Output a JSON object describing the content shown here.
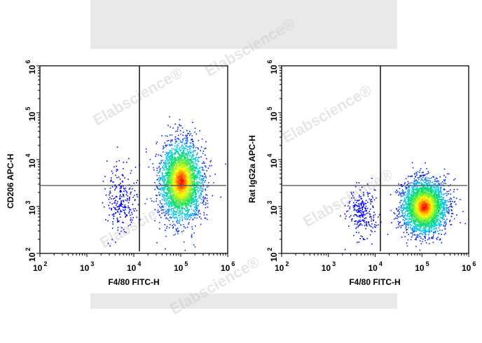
{
  "watermark": "Elabscience®",
  "colors": {
    "background": "#ffffff",
    "gray_band": "#e9e9e9",
    "axis": "#000000",
    "gate_line": "#4a4a4a",
    "density_low": "#0000ff",
    "density_mid_low": "#00c8ff",
    "density_mid": "#00e060",
    "density_mid_high": "#ffff00",
    "density_high": "#ff0000"
  },
  "plots": [
    {
      "xlabel": "F4/80 FITC-H",
      "ylabel": "CD206 APC-H",
      "xticks": [
        {
          "base": "10",
          "exp": "2"
        },
        {
          "base": "10",
          "exp": "3"
        },
        {
          "base": "10",
          "exp": "4"
        },
        {
          "base": "10",
          "exp": "5"
        },
        {
          "base": "10",
          "exp": "6"
        }
      ],
      "yticks": [
        {
          "base": "10",
          "exp": "2"
        },
        {
          "base": "10",
          "exp": "3"
        },
        {
          "base": "10",
          "exp": "4"
        },
        {
          "base": "10",
          "exp": "5"
        },
        {
          "base": "10",
          "exp": "6"
        }
      ]
    },
    {
      "xlabel": "F4/80 FITC-H",
      "ylabel": "Rat IgG2a APC-H",
      "xticks": [
        {
          "base": "10",
          "exp": "2"
        },
        {
          "base": "10",
          "exp": "3"
        },
        {
          "base": "10",
          "exp": "4"
        },
        {
          "base": "10",
          "exp": "5"
        },
        {
          "base": "10",
          "exp": "6"
        }
      ],
      "yticks": [
        {
          "base": "10",
          "exp": "2"
        },
        {
          "base": "10",
          "exp": "3"
        },
        {
          "base": "10",
          "exp": "4"
        },
        {
          "base": "10",
          "exp": "5"
        },
        {
          "base": "10",
          "exp": "6"
        }
      ]
    }
  ],
  "chart_data": [
    {
      "type": "scatter",
      "subtype": "flow-cytometry density pseudocolor plot",
      "title": "",
      "xlabel": "F4/80 FITC-H",
      "ylabel": "CD206 APC-H",
      "xscale": "log",
      "yscale": "log",
      "xlim": [
        100,
        1000000
      ],
      "ylim": [
        100,
        1000000
      ],
      "xticks": [
        "10^2",
        "10^3",
        "10^4",
        "10^5",
        "10^6"
      ],
      "yticks": [
        "10^2",
        "10^3",
        "10^4",
        "10^5",
        "10^6"
      ],
      "grid": false,
      "legend": null,
      "quadrant_gates": {
        "x": 12500,
        "y": 3000
      },
      "populations": [
        {
          "name": "main F4/80+ population",
          "center": {
            "x": 100000,
            "y": 3500
          },
          "x_range": [
            25000,
            350000
          ],
          "y_range": [
            300,
            40000
          ],
          "density": "high",
          "peak_region": "straddles horizontal gate, mostly above (CD206+)"
        },
        {
          "name": "sparse F4/80 low events",
          "center": {
            "x": 5000,
            "y": 1500
          },
          "x_range": [
            1500,
            12000
          ],
          "y_range": [
            150,
            8000
          ],
          "density": "low"
        }
      ]
    },
    {
      "type": "scatter",
      "subtype": "flow-cytometry density pseudocolor plot",
      "title": "",
      "xlabel": "F4/80 FITC-H",
      "ylabel": "Rat IgG2a APC-H",
      "xscale": "log",
      "yscale": "log",
      "xlim": [
        100,
        1000000
      ],
      "ylim": [
        100,
        1000000
      ],
      "xticks": [
        "10^2",
        "10^3",
        "10^4",
        "10^5",
        "10^6"
      ],
      "yticks": [
        "10^2",
        "10^3",
        "10^4",
        "10^5",
        "10^6"
      ],
      "grid": false,
      "legend": null,
      "quadrant_gates": {
        "x": 12500,
        "y": 3000
      },
      "populations": [
        {
          "name": "main F4/80+ population (isotype control)",
          "center": {
            "x": 110000,
            "y": 1000
          },
          "x_range": [
            25000,
            400000
          ],
          "y_range": [
            100,
            2800
          ],
          "density": "high",
          "peak_region": "entirely below horizontal gate"
        },
        {
          "name": "sparse F4/80 low events",
          "center": {
            "x": 5000,
            "y": 800
          },
          "x_range": [
            2000,
            12000
          ],
          "y_range": [
            120,
            2500
          ],
          "density": "low"
        }
      ]
    }
  ]
}
